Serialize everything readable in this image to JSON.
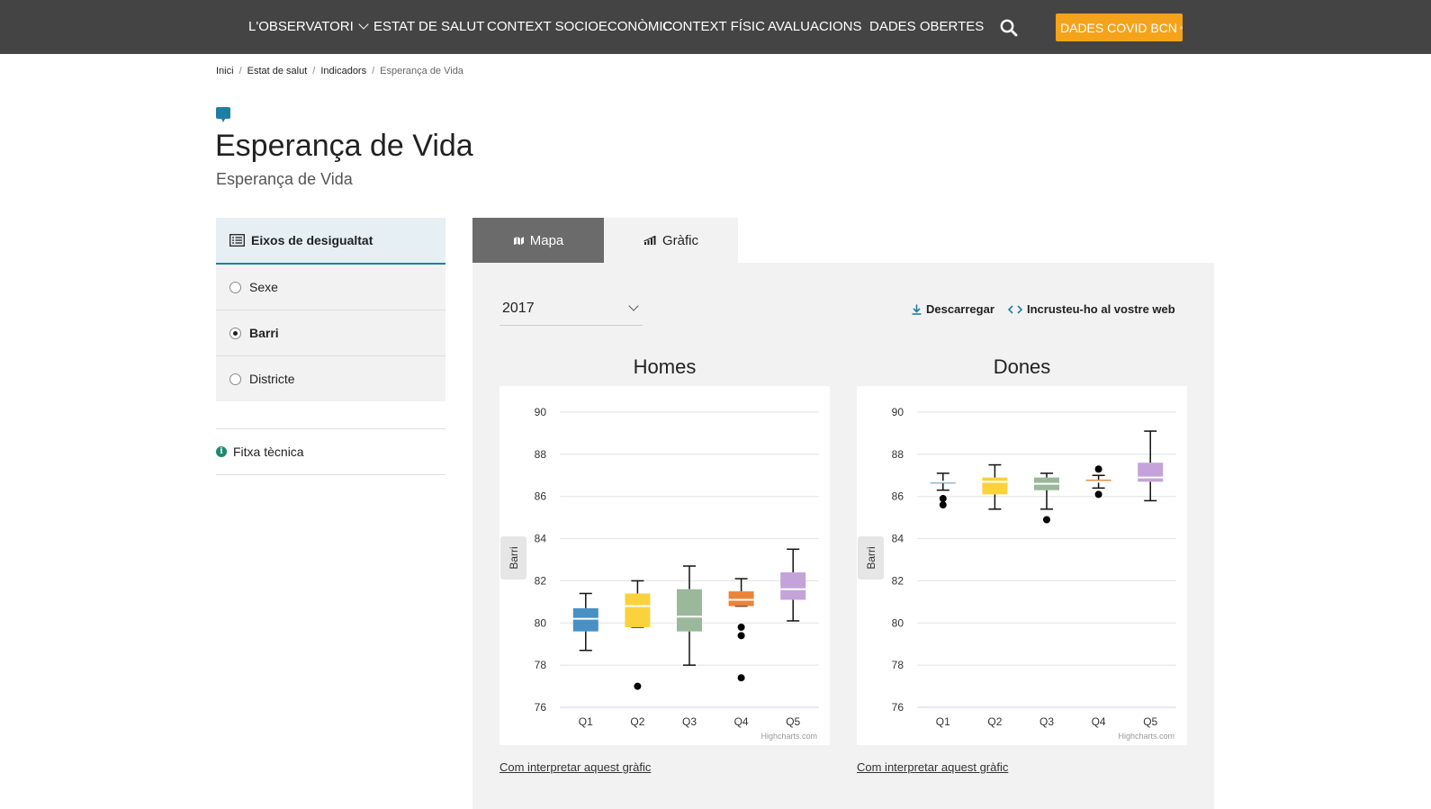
{
  "nav": {
    "items": [
      "L'OBSERVATORI",
      "ESTAT DE SALUT",
      "CONTEXT SOCIOECONÒMIC",
      "CONTEXT FÍSIC",
      "AVALUACIONS",
      "DADES OBERTES"
    ],
    "covid_button": "DADES COVID BCN"
  },
  "breadcrumb": {
    "items": [
      "Inici",
      "Estat de salut",
      "Indicadors"
    ],
    "current": "Esperança de Vida"
  },
  "page": {
    "title": "Esperança de Vida",
    "subtitle": "Esperança de Vida"
  },
  "sidebar": {
    "heading": "Eixos de desigualtat",
    "options": [
      "Sexe",
      "Barri",
      "Districte"
    ],
    "selected": "Barri",
    "fitxa": "Fitxa tècnica"
  },
  "tabs": {
    "map": "Mapa",
    "graph": "Gràfic"
  },
  "controls": {
    "year": "2017",
    "download": "Descarregar",
    "embed": "Incrusteu-ho al vostre web"
  },
  "colors": {
    "Q1": "#4a90c4",
    "Q2": "#fcd23c",
    "Q3": "#9ab89a",
    "Q4": "#e9843a",
    "Q5": "#c3a3da",
    "topbar": "#444444",
    "covid": "#f5a31a",
    "accent": "#1d7fa3"
  },
  "chart_data": [
    {
      "type": "boxplot",
      "title": "Homes",
      "ylabel": "Barri",
      "ylim": [
        76,
        90
      ],
      "yticks": [
        76,
        78,
        80,
        82,
        84,
        86,
        88,
        90
      ],
      "categories": [
        "Q1",
        "Q2",
        "Q3",
        "Q4",
        "Q5"
      ],
      "boxes": [
        {
          "low": 78.7,
          "q1": 79.6,
          "median": 80.2,
          "q3": 80.7,
          "high": 81.4,
          "outliers": []
        },
        {
          "low": 79.8,
          "q1": 79.8,
          "median": 80.8,
          "q3": 81.4,
          "high": 82.0,
          "outliers": [
            77.0
          ]
        },
        {
          "low": 78.0,
          "q1": 79.6,
          "median": 80.3,
          "q3": 81.6,
          "high": 82.7,
          "outliers": []
        },
        {
          "low": 80.8,
          "q1": 80.8,
          "median": 81.1,
          "q3": 81.5,
          "high": 82.1,
          "outliers": [
            77.4,
            79.4,
            79.8
          ]
        },
        {
          "low": 80.1,
          "q1": 81.1,
          "median": 81.6,
          "q3": 82.4,
          "high": 83.5,
          "outliers": []
        }
      ],
      "credit": "Highcharts.com",
      "link": "Com interpretar aquest gràfic"
    },
    {
      "type": "boxplot",
      "title": "Dones",
      "ylabel": "Barri",
      "ylim": [
        76,
        90
      ],
      "yticks": [
        76,
        78,
        80,
        82,
        84,
        86,
        88,
        90
      ],
      "categories": [
        "Q1",
        "Q2",
        "Q3",
        "Q4",
        "Q5"
      ],
      "boxes": [
        {
          "low": 86.3,
          "q1": 86.7,
          "median": 86.7,
          "q3": 86.7,
          "high": 87.1,
          "outliers": [
            85.6,
            85.9
          ]
        },
        {
          "low": 85.4,
          "q1": 86.1,
          "median": 86.7,
          "q3": 86.9,
          "high": 87.5,
          "outliers": []
        },
        {
          "low": 85.4,
          "q1": 86.3,
          "median": 86.6,
          "q3": 86.9,
          "high": 87.1,
          "outliers": [
            84.9
          ]
        },
        {
          "low": 86.4,
          "q1": 86.7,
          "median": 86.7,
          "q3": 86.8,
          "high": 87.0,
          "outliers": [
            86.1,
            87.3
          ]
        },
        {
          "low": 85.8,
          "q1": 86.7,
          "median": 86.9,
          "q3": 87.6,
          "high": 89.1,
          "outliers": []
        }
      ],
      "credit": "Highcharts.com",
      "link": "Com interpretar aquest gràfic"
    }
  ]
}
